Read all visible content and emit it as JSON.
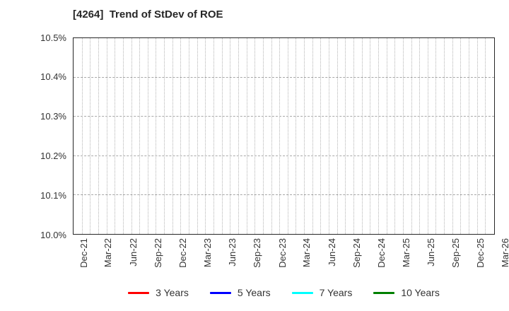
{
  "chart_data": {
    "type": "line",
    "title": "[4264]  Trend of StDev of ROE",
    "x_tick_labels": [
      "Dec-21",
      "Mar-22",
      "Jun-22",
      "Sep-22",
      "Dec-22",
      "Mar-23",
      "Jun-23",
      "Sep-23",
      "Dec-23",
      "Mar-24",
      "Jun-24",
      "Sep-24",
      "Dec-24",
      "Mar-25",
      "Jun-25",
      "Sep-25",
      "Dec-25",
      "Mar-26"
    ],
    "y_tick_labels": [
      "10.0%",
      "10.1%",
      "10.2%",
      "10.3%",
      "10.4%",
      "10.5%"
    ],
    "ylim": [
      10.0,
      10.5
    ],
    "y_unit": "%",
    "months_per_x_interval": 3,
    "grid": true,
    "legend_position": "bottom",
    "series": [
      {
        "name": "3 Years",
        "color": "#ff0000",
        "values": []
      },
      {
        "name": "5 Years",
        "color": "#0000ff",
        "values": []
      },
      {
        "name": "7 Years",
        "color": "#00ffff",
        "values": []
      },
      {
        "name": "10 Years",
        "color": "#008000",
        "values": []
      }
    ]
  },
  "layout_colors": {
    "background": "#ffffff",
    "axis_border": "#262626",
    "vertical_grid": "#b4b4b4",
    "horizontal_grid": "#a8a8a8",
    "tick_label": "#333333",
    "title": "#262626"
  }
}
